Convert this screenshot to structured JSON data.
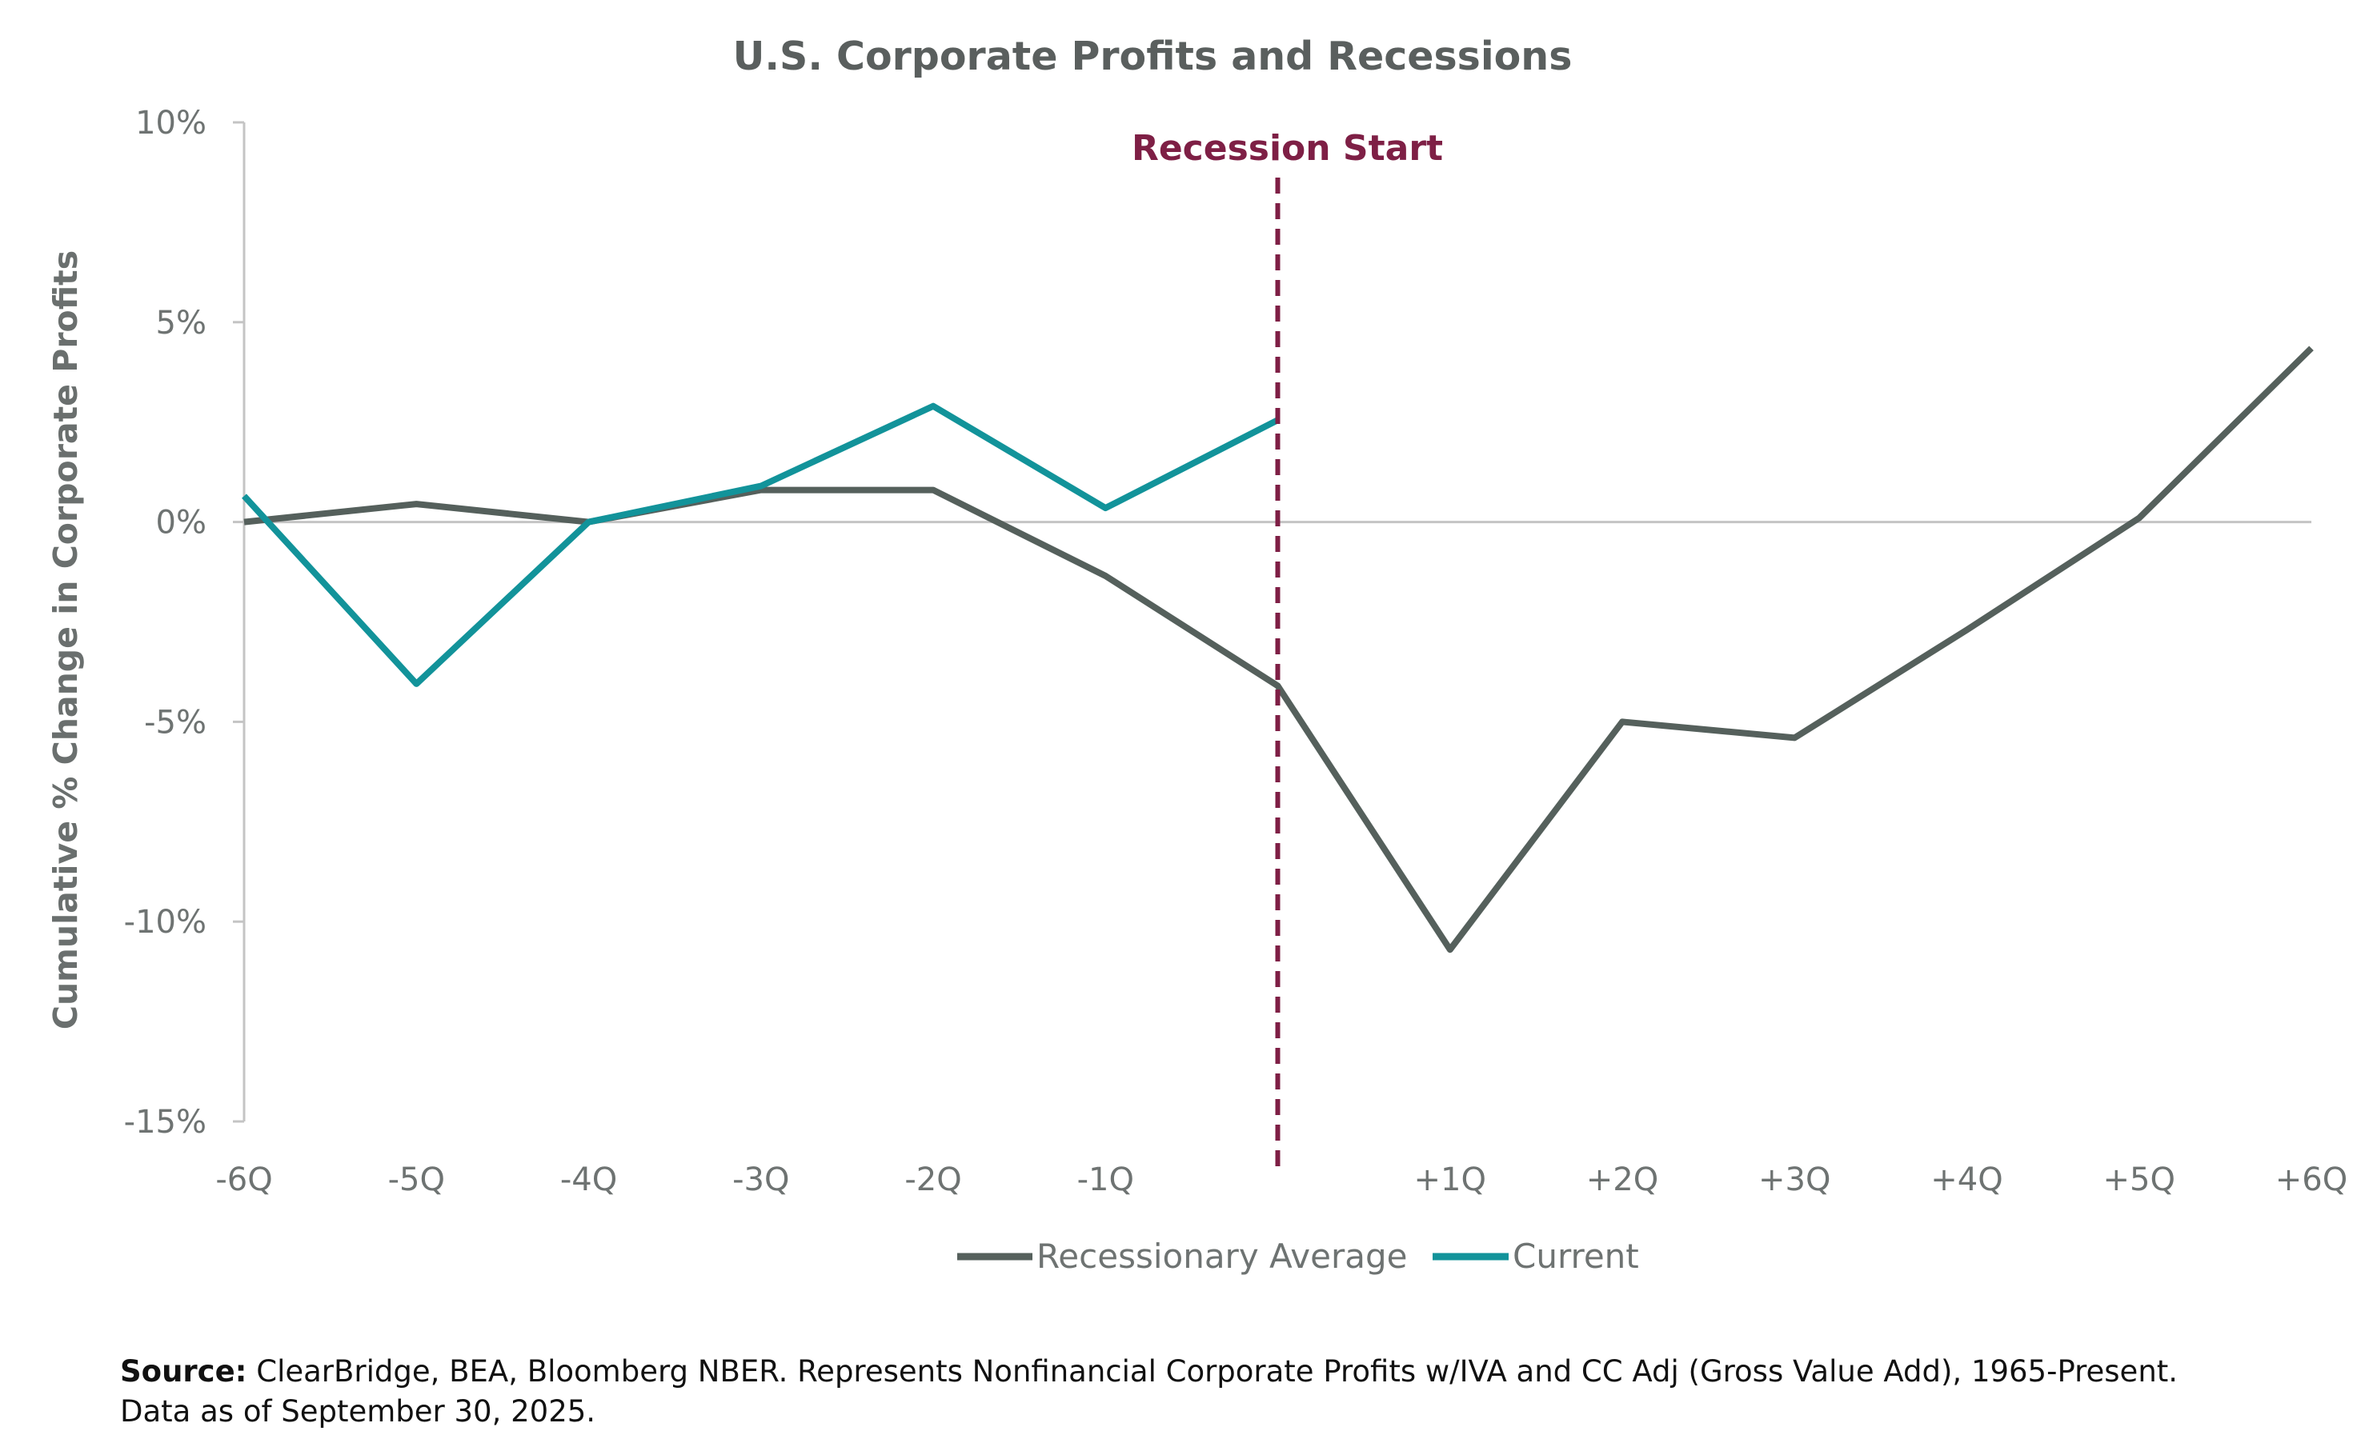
{
  "colors": {
    "average": "#55605c",
    "current": "#12939a",
    "recession": "#7e1f45",
    "axis": "#c4c4c4",
    "text": "#6e7372"
  },
  "chart_data": {
    "type": "line",
    "title": "U.S. Corporate Profits and Recessions",
    "ylabel": "Cumulative % Change in Corporate Profits",
    "xlabel": "",
    "categories": [
      "-6Q",
      "-5Q",
      "-4Q",
      "-3Q",
      "-2Q",
      "-1Q",
      "",
      "+1Q",
      "+2Q",
      "+3Q",
      "+4Q",
      "+5Q",
      "+6Q"
    ],
    "ylim": [
      -15,
      10
    ],
    "yticks": [
      10,
      5,
      0,
      -5,
      -10,
      -15
    ],
    "ytick_labels": [
      "10%",
      "5%",
      "0%",
      "-5%",
      "-10%",
      "-15%"
    ],
    "grid": false,
    "legend_position": "bottom-center",
    "series": [
      {
        "name": "Recessionary Average",
        "color": "#55605c",
        "values": [
          0.0,
          0.45,
          0.0,
          0.8,
          0.8,
          -1.35,
          -4.1,
          -10.7,
          -5.0,
          -5.4,
          -2.7,
          0.1,
          4.35
        ]
      },
      {
        "name": "Current",
        "color": "#12939a",
        "values": [
          0.65,
          -4.05,
          0.0,
          0.9,
          2.9,
          0.35,
          2.55,
          null,
          null,
          null,
          null,
          null,
          null
        ]
      }
    ],
    "annotations": [
      {
        "text": "Recession Start",
        "x_index": 6
      }
    ]
  },
  "source": {
    "label": "Source:",
    "line1": " ClearBridge, BEA, Bloomberg NBER. Represents Nonfinancial Corporate Profits w/IVA and CC Adj (Gross Value Add), 1965-Present.",
    "line2": "Data as of September 30, 2025."
  }
}
